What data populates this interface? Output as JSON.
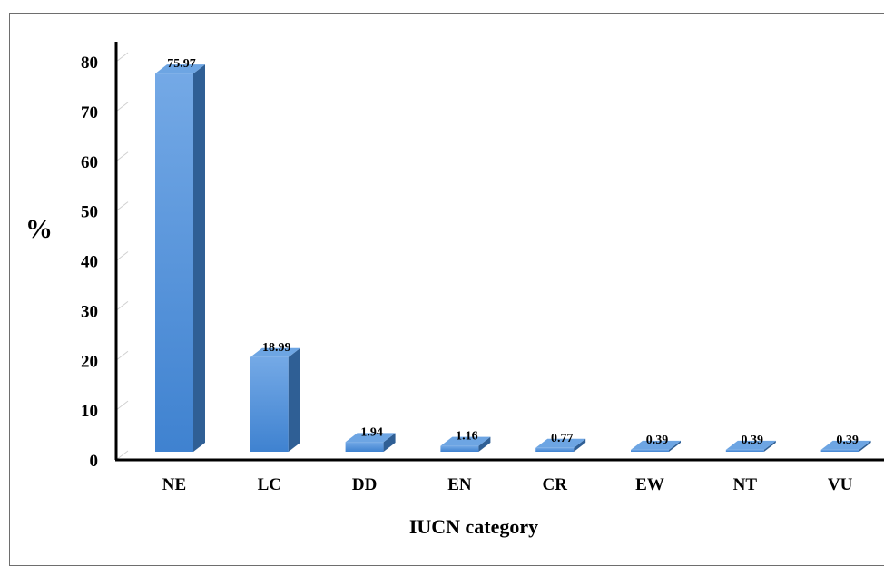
{
  "chart_data": {
    "type": "bar",
    "title": "",
    "xlabel": "IUCN category",
    "ylabel": "%",
    "categories": [
      "NE",
      "LC",
      "DD",
      "EN",
      "CR",
      "EW",
      "NT",
      "VU"
    ],
    "values": [
      75.97,
      18.99,
      1.94,
      1.16,
      0.77,
      0.39,
      0.39,
      0.39
    ],
    "data_labels": [
      "75.97",
      "18.99",
      "1.94",
      "1.16",
      "0.77",
      "0.39",
      "0.39",
      "0.39"
    ],
    "ylim": [
      0,
      80
    ],
    "yticks": [
      0,
      10,
      20,
      30,
      40,
      50,
      60,
      70,
      80
    ],
    "grid": false,
    "legend": "none",
    "style": "3d-column",
    "colors": {
      "bar_front": "#4f8fd8",
      "bar_side": "#2f5f95",
      "bar_top": "#6da5e3"
    }
  }
}
